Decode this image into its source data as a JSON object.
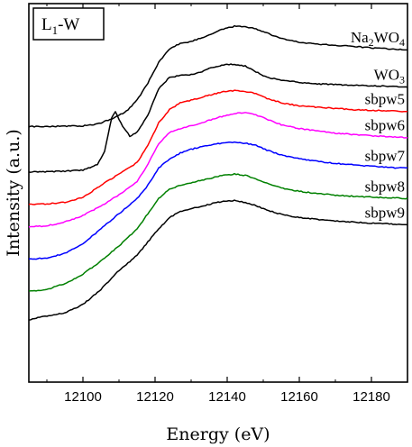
{
  "chart_data": {
    "type": "line",
    "title": "",
    "panel_label": {
      "main": "L",
      "sub": "1",
      "rest": "-W"
    },
    "xlabel": "Energy (eV)",
    "ylabel": "Intensity (a.u.)",
    "xlim": [
      12085,
      12190
    ],
    "ylim": [
      0,
      100
    ],
    "x_ticks": [
      12100,
      12120,
      12140,
      12160,
      12180
    ],
    "y_ticks_labeled": false,
    "grid": false,
    "legend": "none",
    "series": [
      {
        "name": "Na2WO4",
        "label": {
          "parts": [
            {
              "t": "Na",
              "sub": false
            },
            {
              "t": "2",
              "sub": true
            },
            {
              "t": "WO",
              "sub": false
            },
            {
              "t": "4",
              "sub": true
            }
          ]
        },
        "color": "#000000",
        "x": [
          12085,
          12095,
          12100,
          12104,
          12108,
          12112,
          12115,
          12118,
          12121,
          12124,
          12127,
          12130,
          12133,
          12136,
          12139,
          12142,
          12145,
          12148,
          12151,
          12155,
          12160,
          12165,
          12170,
          12175,
          12180,
          12185,
          12190
        ],
        "y": [
          67.5,
          67.6,
          67.7,
          68.2,
          69.5,
          71.5,
          74.5,
          79.0,
          84.5,
          88.0,
          89.5,
          90.0,
          91.0,
          92.2,
          93.3,
          94.0,
          93.9,
          93.3,
          92.2,
          90.8,
          89.8,
          89.3,
          89.0,
          88.7,
          88.3,
          88.0,
          87.8
        ]
      },
      {
        "name": "WO3",
        "label": {
          "parts": [
            {
              "t": "WO",
              "sub": false
            },
            {
              "t": "3",
              "sub": true
            }
          ]
        },
        "color": "#000000",
        "x": [
          12085,
          12095,
          12100,
          12104,
          12106,
          12108,
          12109,
          12111,
          12113,
          12115,
          12118,
          12121,
          12124,
          12127,
          12130,
          12133,
          12136,
          12139,
          12142,
          12145,
          12148,
          12151,
          12155,
          12160,
          12165,
          12170,
          12175,
          12180,
          12185,
          12190
        ],
        "y": [
          55.5,
          55.7,
          56.0,
          57.5,
          61.0,
          70.0,
          71.5,
          67.5,
          65.0,
          66.0,
          70.5,
          77.5,
          80.5,
          81.0,
          81.2,
          82.0,
          83.2,
          83.8,
          84.0,
          83.5,
          82.0,
          80.5,
          79.8,
          79.2,
          78.8,
          78.6,
          78.4,
          78.3,
          78.2,
          78.0
        ]
      },
      {
        "name": "sbpw5",
        "label": {
          "parts": [
            {
              "t": "sbpw5",
              "sub": false
            }
          ]
        },
        "color": "#ff0000",
        "x": [
          12085,
          12090,
          12095,
          12100,
          12105,
          12110,
          12115,
          12118,
          12121,
          12124,
          12127,
          12130,
          12133,
          12136,
          12139,
          12142,
          12145,
          12148,
          12151,
          12155,
          12160,
          12165,
          12170,
          12175,
          12180,
          12185,
          12190
        ],
        "y": [
          47.0,
          47.1,
          47.5,
          48.8,
          52.0,
          55.0,
          58.0,
          62.5,
          68.5,
          72.0,
          73.8,
          74.5,
          75.3,
          76.0,
          76.8,
          77.0,
          76.8,
          76.2,
          75.0,
          73.8,
          73.0,
          72.6,
          72.3,
          72.0,
          71.8,
          71.7,
          71.5
        ]
      },
      {
        "name": "sbpw6",
        "label": {
          "parts": [
            {
              "t": "sbpw6",
              "sub": false
            }
          ]
        },
        "color": "#ff00ff",
        "x": [
          12085,
          12090,
          12095,
          12100,
          12105,
          12110,
          12115,
          12118,
          12121,
          12124,
          12127,
          12130,
          12133,
          12136,
          12139,
          12142,
          12145,
          12148,
          12151,
          12155,
          12160,
          12165,
          12170,
          12175,
          12180,
          12185,
          12190
        ],
        "y": [
          41.0,
          41.3,
          42.3,
          44.0,
          46.5,
          49.5,
          53.0,
          57.5,
          63.0,
          66.0,
          67.0,
          67.8,
          68.5,
          69.5,
          70.3,
          71.0,
          71.2,
          70.6,
          69.5,
          68.0,
          67.0,
          66.3,
          65.8,
          65.4,
          65.1,
          64.8,
          64.6
        ]
      },
      {
        "name": "sbpw7",
        "label": {
          "parts": [
            {
              "t": "sbpw7",
              "sub": false
            }
          ]
        },
        "color": "#0000ff",
        "x": [
          12085,
          12090,
          12095,
          12100,
          12105,
          12110,
          12115,
          12118,
          12121,
          12124,
          12127,
          12130,
          12133,
          12136,
          12139,
          12142,
          12145,
          12148,
          12151,
          12155,
          12160,
          12165,
          12170,
          12175,
          12180,
          12185,
          12190
        ],
        "y": [
          32.5,
          32.8,
          34.0,
          36.5,
          40.5,
          44.5,
          48.5,
          52.0,
          56.5,
          59.0,
          60.5,
          61.5,
          62.2,
          62.8,
          63.2,
          63.4,
          63.1,
          62.5,
          61.3,
          60.0,
          59.0,
          58.3,
          57.8,
          57.4,
          57.0,
          56.7,
          56.5
        ]
      },
      {
        "name": "sbpw8",
        "label": {
          "parts": [
            {
              "t": "sbpw8",
              "sub": false
            }
          ]
        },
        "color": "#008000",
        "x": [
          12085,
          12090,
          12095,
          12100,
          12105,
          12110,
          12115,
          12118,
          12121,
          12124,
          12127,
          12130,
          12133,
          12136,
          12139,
          12142,
          12145,
          12148,
          12151,
          12155,
          12160,
          12165,
          12170,
          12175,
          12180,
          12185,
          12190
        ],
        "y": [
          24.0,
          24.5,
          26.0,
          28.5,
          32.0,
          36.0,
          40.5,
          44.5,
          48.5,
          51.0,
          52.0,
          52.7,
          53.3,
          54.0,
          54.6,
          55.0,
          54.6,
          53.7,
          52.6,
          51.3,
          50.4,
          49.8,
          49.4,
          49.1,
          48.9,
          48.7,
          48.5
        ]
      },
      {
        "name": "sbpw9",
        "label": {
          "parts": [
            {
              "t": "sbpw9",
              "sub": false
            }
          ]
        },
        "color": "#000000",
        "x": [
          12085,
          12090,
          12095,
          12100,
          12105,
          12110,
          12115,
          12118,
          12121,
          12124,
          12127,
          12130,
          12133,
          12136,
          12139,
          12142,
          12145,
          12148,
          12151,
          12155,
          12160,
          12165,
          12170,
          12175,
          12180,
          12185,
          12190
        ],
        "y": [
          16.5,
          17.5,
          18.3,
          20.5,
          24.5,
          29.5,
          33.5,
          37.0,
          40.5,
          43.5,
          45.0,
          45.8,
          46.5,
          47.2,
          47.8,
          48.0,
          47.5,
          46.6,
          45.5,
          44.3,
          43.5,
          43.0,
          42.6,
          42.3,
          42.0,
          41.8,
          41.6
        ]
      }
    ]
  }
}
